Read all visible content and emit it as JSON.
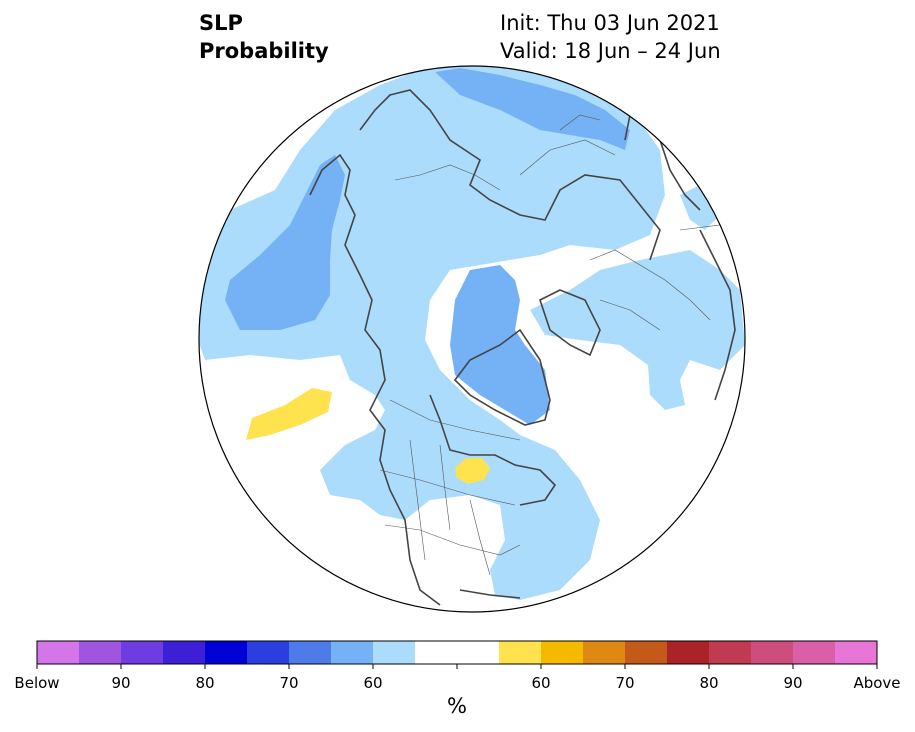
{
  "title": {
    "variable": "SLP",
    "product": "Probability",
    "init": "Init: Thu 03 Jun 2021",
    "valid": "Valid: 18 Jun – 24 Jun"
  },
  "colorbar": {
    "units": "%",
    "colors": [
      "#d576e8",
      "#a055e0",
      "#6e3ce0",
      "#3d1fd6",
      "#0000d6",
      "#2b3ee0",
      "#4e7be8",
      "#75b2f5",
      "#acdcfc",
      "#ffffff",
      "#ffffff",
      "#fee24e",
      "#f3ba00",
      "#de8914",
      "#c45a1a",
      "#ab2326",
      "#c03a51",
      "#cd4d7d",
      "#db5fa6",
      "#e875d8"
    ],
    "tick_labels": [
      "Below",
      "90",
      "80",
      "70",
      "60",
      "60",
      "70",
      "80",
      "90",
      "Above"
    ]
  },
  "map": {
    "projection": "north-polar-stereographic",
    "fill_colors": {
      "below_55_60": "#acdcfc",
      "below_60_65": "#75b2f5",
      "above_55_60": "#fee24e",
      "coast": "#444444",
      "border": "#555555"
    }
  }
}
